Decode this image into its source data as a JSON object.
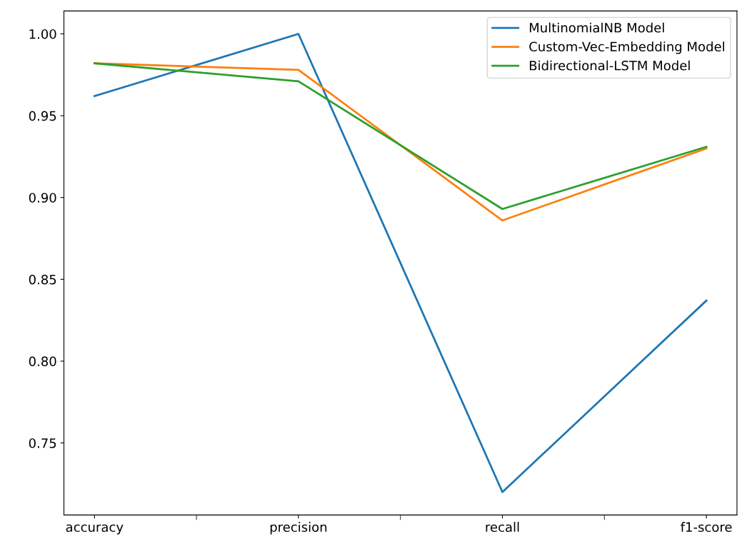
{
  "chart_data": {
    "type": "line",
    "categories": [
      "accuracy",
      "precision",
      "recall",
      "f1-score"
    ],
    "series": [
      {
        "name": "MultinomialNB Model",
        "color": "#1f77b4",
        "values": [
          0.962,
          1.0,
          0.72,
          0.837
        ]
      },
      {
        "name": "Custom-Vec-Embedding Model",
        "color": "#ff7f0e",
        "values": [
          0.982,
          0.978,
          0.886,
          0.93
        ]
      },
      {
        "name": "Bidirectional-LSTM Model",
        "color": "#2ca02c",
        "values": [
          0.982,
          0.971,
          0.893,
          0.931
        ]
      }
    ],
    "ylim": [
      0.706,
      1.014
    ],
    "yticks": [
      {
        "value": 0.75,
        "label": "0.75"
      },
      {
        "value": 0.8,
        "label": "0.80"
      },
      {
        "value": 0.85,
        "label": "0.85"
      },
      {
        "value": 0.9,
        "label": "0.90"
      },
      {
        "value": 0.95,
        "label": "0.95"
      },
      {
        "value": 1.0,
        "label": "1.00"
      }
    ],
    "legend": "top right",
    "grid": false,
    "marker": "none",
    "line_style": "solid"
  }
}
